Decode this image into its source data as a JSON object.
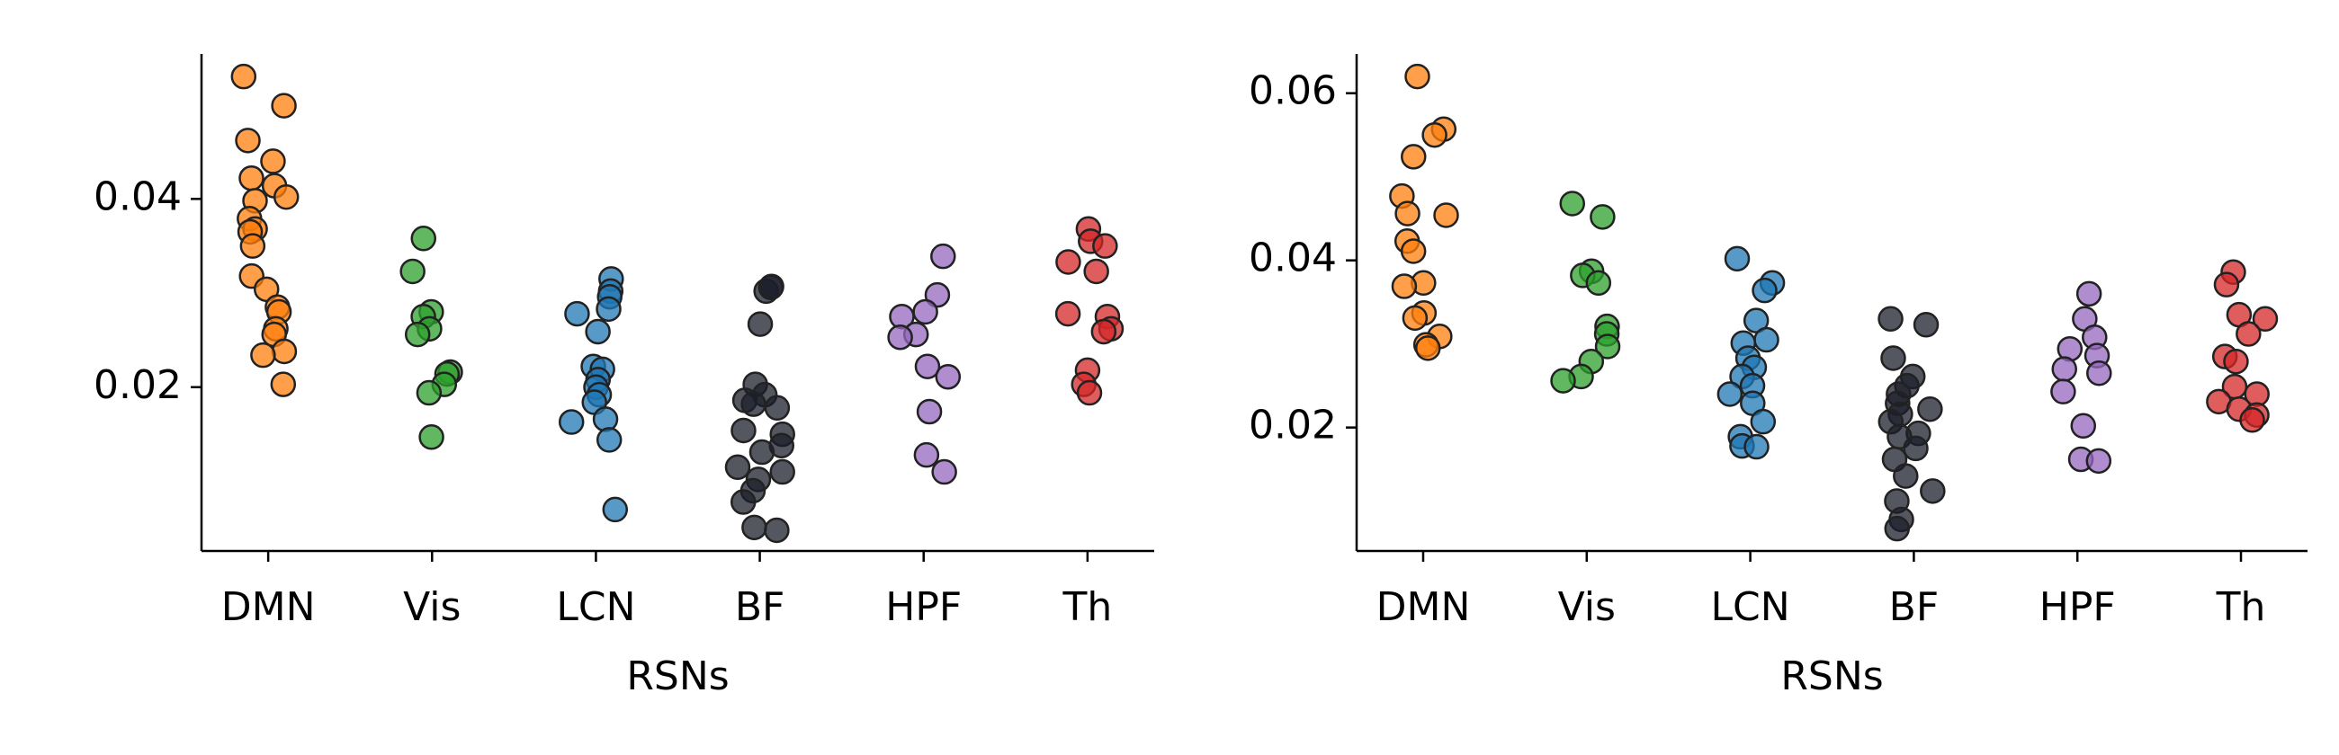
{
  "chart_data": [
    {
      "type": "strip",
      "xlabel": "RSNs",
      "categories": [
        "DMN",
        "Vis",
        "LCN",
        "BF",
        "HPF",
        "Th"
      ],
      "colors": [
        "#ff7f0e",
        "#2ca02c",
        "#1f77b4",
        "#1c1f2b",
        "#9467bd",
        "#d62728"
      ],
      "values": [
        [
          0.053,
          0.0499,
          0.0462,
          0.044,
          0.0422,
          0.0414,
          0.0402,
          0.0398,
          0.0379,
          0.0368,
          0.0365,
          0.035,
          0.0318,
          0.0304,
          0.0285,
          0.028,
          0.0262,
          0.0256,
          0.0238,
          0.0234,
          0.0203
        ],
        [
          0.0358,
          0.0323,
          0.028,
          0.0275,
          0.0262,
          0.0256,
          0.0216,
          0.0214,
          0.0203,
          0.0194,
          0.0147
        ],
        [
          0.0315,
          0.0302,
          0.0296,
          0.0283,
          0.0278,
          0.0259,
          0.0222,
          0.0219,
          0.0208,
          0.02,
          0.0192,
          0.0184,
          0.0166,
          0.0163,
          0.0144,
          0.007
        ],
        [
          0.0306,
          0.0302,
          0.0307,
          0.0267,
          0.0203,
          0.0192,
          0.0186,
          0.0182,
          0.0178,
          0.0154,
          0.015,
          0.0138,
          0.0131,
          0.0115,
          0.011,
          0.0102,
          0.009,
          0.0078,
          0.0051,
          0.0048
        ],
        [
          0.0339,
          0.0298,
          0.028,
          0.0275,
          0.0256,
          0.0253,
          0.0222,
          0.0211,
          0.0174,
          0.0128,
          0.011
        ],
        [
          0.0368,
          0.0355,
          0.035,
          0.0333,
          0.0323,
          0.0278,
          0.0275,
          0.0262,
          0.0259,
          0.0218,
          0.0203,
          0.0194
        ]
      ],
      "ylim": [
        0.0026,
        0.0554
      ],
      "yticks": [
        0.02,
        0.04
      ]
    },
    {
      "type": "strip",
      "xlabel": "RSNs",
      "categories": [
        "DMN",
        "Vis",
        "LCN",
        "BF",
        "HPF",
        "Th"
      ],
      "colors": [
        "#ff7f0e",
        "#2ca02c",
        "#1f77b4",
        "#1c1f2b",
        "#9467bd",
        "#d62728"
      ],
      "values": [
        [
          0.062,
          0.0557,
          0.055,
          0.0524,
          0.0477,
          0.0456,
          0.0454,
          0.0423,
          0.0411,
          0.0373,
          0.0369,
          0.0337,
          0.0331,
          0.0309,
          0.0299,
          0.0295
        ],
        [
          0.0468,
          0.0452,
          0.0387,
          0.0382,
          0.0373,
          0.0321,
          0.0312,
          0.0297,
          0.0279,
          0.0261,
          0.0256
        ],
        [
          0.0402,
          0.0373,
          0.0364,
          0.0328,
          0.0305,
          0.0301,
          0.0283,
          0.0272,
          0.0261,
          0.025,
          0.024,
          0.0229,
          0.0207,
          0.0189,
          0.0178,
          0.0177
        ],
        [
          0.033,
          0.0323,
          0.0283,
          0.0261,
          0.025,
          0.024,
          0.0229,
          0.0222,
          0.0216,
          0.0207,
          0.0193,
          0.0189,
          0.0175,
          0.0162,
          0.0142,
          0.0124,
          0.0112,
          0.009,
          0.0079
        ],
        [
          0.036,
          0.033,
          0.0308,
          0.0294,
          0.0286,
          0.027,
          0.0265,
          0.0243,
          0.0202,
          0.0162,
          0.016
        ],
        [
          0.0386,
          0.0371,
          0.0335,
          0.033,
          0.0312,
          0.0285,
          0.0279,
          0.0249,
          0.024,
          0.0231,
          0.0222,
          0.0215,
          0.0209
        ]
      ],
      "ylim": [
        0.00523,
        0.0647
      ],
      "yticks": [
        0.02,
        0.04,
        0.06
      ]
    }
  ]
}
